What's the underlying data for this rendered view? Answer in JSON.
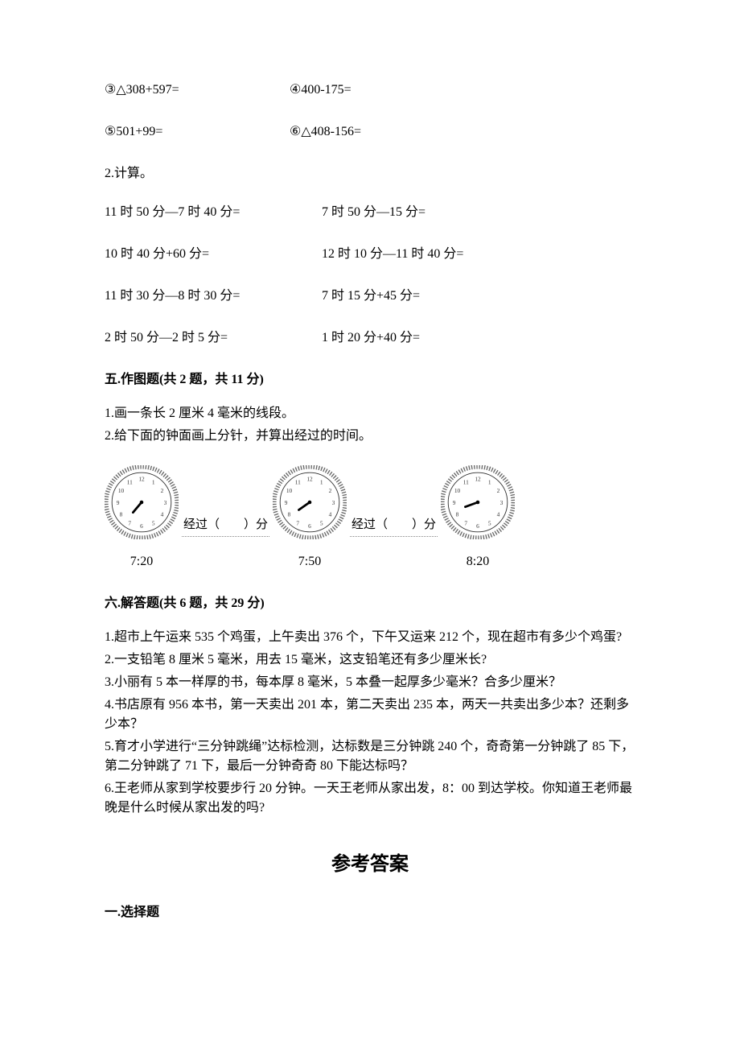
{
  "colors": {
    "text": "#000000",
    "bg": "#ffffff",
    "clock_rim": "#6b6b6b",
    "clock_dotted": "#888888"
  },
  "fonts": {
    "body_pt": 12,
    "answer_title_pt": 18,
    "family": "SimSun"
  },
  "q1_rows": [
    {
      "a": "③△308+597=",
      "b": "④400-175="
    },
    {
      "a": "⑤501+99=",
      "b": "⑥△408-156="
    }
  ],
  "q2_label": "2.计算。",
  "q2_rows": [
    {
      "a": "11 时 50 分—7 时 40 分=",
      "b": "7 时 50 分—15 分="
    },
    {
      "a": "10 时 40 分+60 分=",
      "b": "12 时 10 分—11 时 40 分="
    },
    {
      "a": "11 时 30 分—8 时 30 分=",
      "b": "7 时 15 分+45 分="
    },
    {
      "a": "2 时 50 分—2 时 5 分=",
      "b": "1 时 20 分+40 分="
    }
  ],
  "section5_head": "五.作图题(共 2 题，共 11 分)",
  "section5_items": [
    "1.画一条长 2 厘米 4 毫米的线段。",
    "2.给下面的钟面画上分针，并算出经过的时间。"
  ],
  "clocks": {
    "times": [
      "7:20",
      "7:50",
      "8:20"
    ],
    "gap_label_prefix": "经过（",
    "gap_label_suffix": "）分",
    "hour_angles": [
      220,
      235,
      250
    ],
    "rim_width": 6,
    "tick_count": 12,
    "face_fill": "#ffffff"
  },
  "section6_head": "六.解答题(共 6 题，共 29 分)",
  "section6_items": [
    "1.超市上午运来 535 个鸡蛋，上午卖出 376 个，下午又运来 212 个，现在超市有多少个鸡蛋?",
    "2.一支铅笔 8 厘米 5 毫米，用去 15 毫米，这支铅笔还有多少厘米长?",
    "3.小丽有 5 本一样厚的书，每本厚 8 毫米，5 本叠一起厚多少毫米？合多少厘米？",
    "4.书店原有 956 本书，第一天卖出 201 本，第二天卖出 235 本，两天一共卖出多少本？还剩多少本？",
    "5.育才小学进行“三分钟跳绳”达标检测，达标数是三分钟跳 240 个，奇奇第一分钟跳了 85 下，第二分钟跳了 71 下，最后一分钟奇奇 80 下能达标吗？",
    "6.王老师从家到学校要步行 20 分钟。一天王老师从家出发，8：00 到达学校。你知道王老师最晚是什么时候从家出发的吗?"
  ],
  "answer_title": "参考答案",
  "answer_sub1": "一.选择题"
}
